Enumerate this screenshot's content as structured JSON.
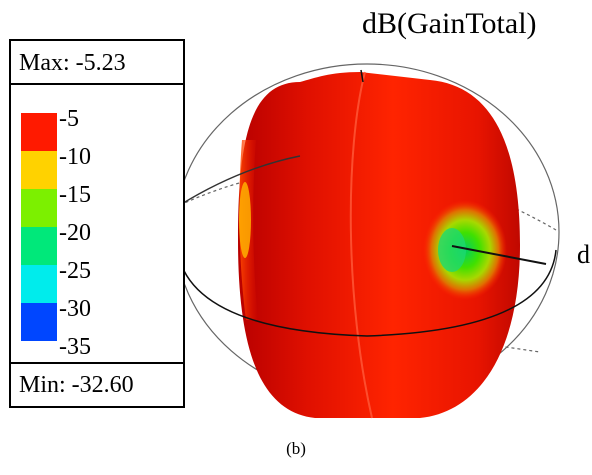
{
  "title": "dB(GainTotal)",
  "legend": {
    "max_label": "Max: -5.23",
    "min_label": "Min: -32.60",
    "levels": [
      {
        "label": "-5",
        "color": "#ff1a00"
      },
      {
        "label": "-10",
        "color": "#ffd200"
      },
      {
        "label": "-15",
        "color": "#7cf000"
      },
      {
        "label": "-20",
        "color": "#00e87a"
      },
      {
        "label": "-25",
        "color": "#00ecec"
      },
      {
        "label": "-30",
        "color": "#0046ff"
      },
      {
        "label": "-35",
        "color": "#0000dc"
      }
    ]
  },
  "axis_label": "d",
  "caption": "(b)"
}
